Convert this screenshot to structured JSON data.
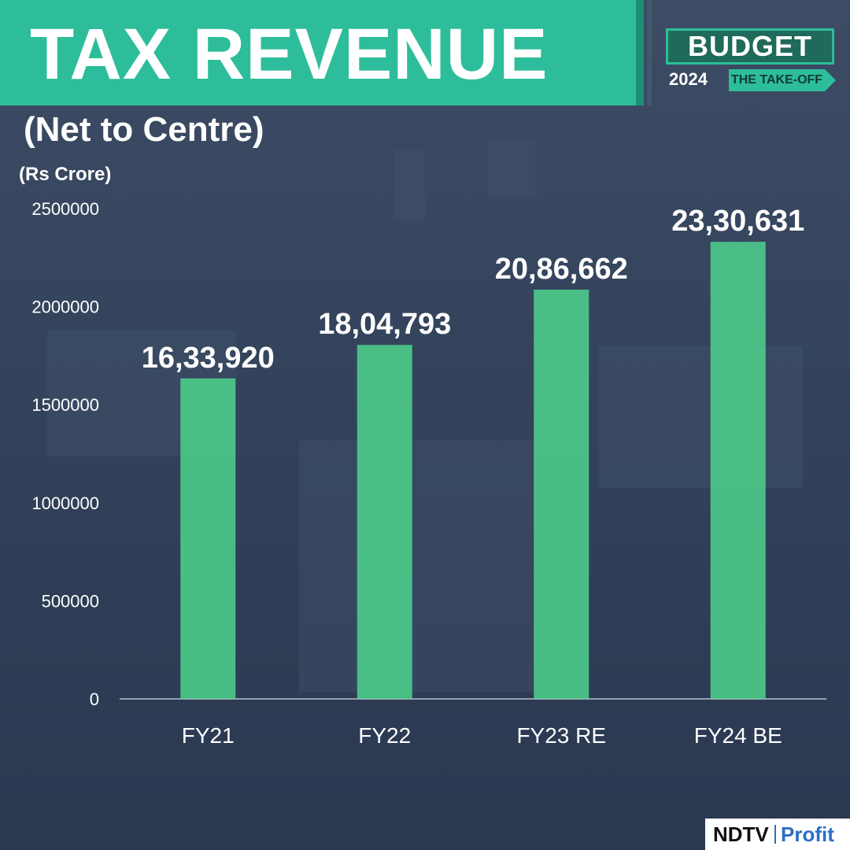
{
  "header": {
    "title": "TAX REVENUE",
    "subtitle": "(Net to Centre)",
    "unit": "(Rs Crore)"
  },
  "logo": {
    "word": "BUDGET",
    "year": "2024",
    "tagline": "THE TAKE-OFF"
  },
  "brand": {
    "name": "NDTV",
    "product": "Profit"
  },
  "colors": {
    "banner": "#2dbd9a",
    "bar": "#4fd98f",
    "background": "#34445c",
    "brand_blue": "#2a6fc4"
  },
  "chart_data": {
    "type": "bar",
    "title": "TAX REVENUE",
    "subtitle": "(Net to Centre)",
    "ylabel": "(Rs Crore)",
    "categories": [
      "FY21",
      "FY22",
      "FY23 RE",
      "FY24 BE"
    ],
    "values": [
      1633920,
      1804793,
      2086662,
      2330631
    ],
    "value_labels": [
      "16,33,920",
      "18,04,793",
      "20,86,662",
      "23,30,631"
    ],
    "yticks": [
      0,
      500000,
      1000000,
      1500000,
      2000000,
      2500000
    ],
    "ytick_labels": [
      "0",
      "500000",
      "1000000",
      "1500000",
      "2000000",
      "2500000"
    ],
    "ylim": [
      0,
      2500000
    ],
    "grid": false,
    "legend": "none"
  }
}
